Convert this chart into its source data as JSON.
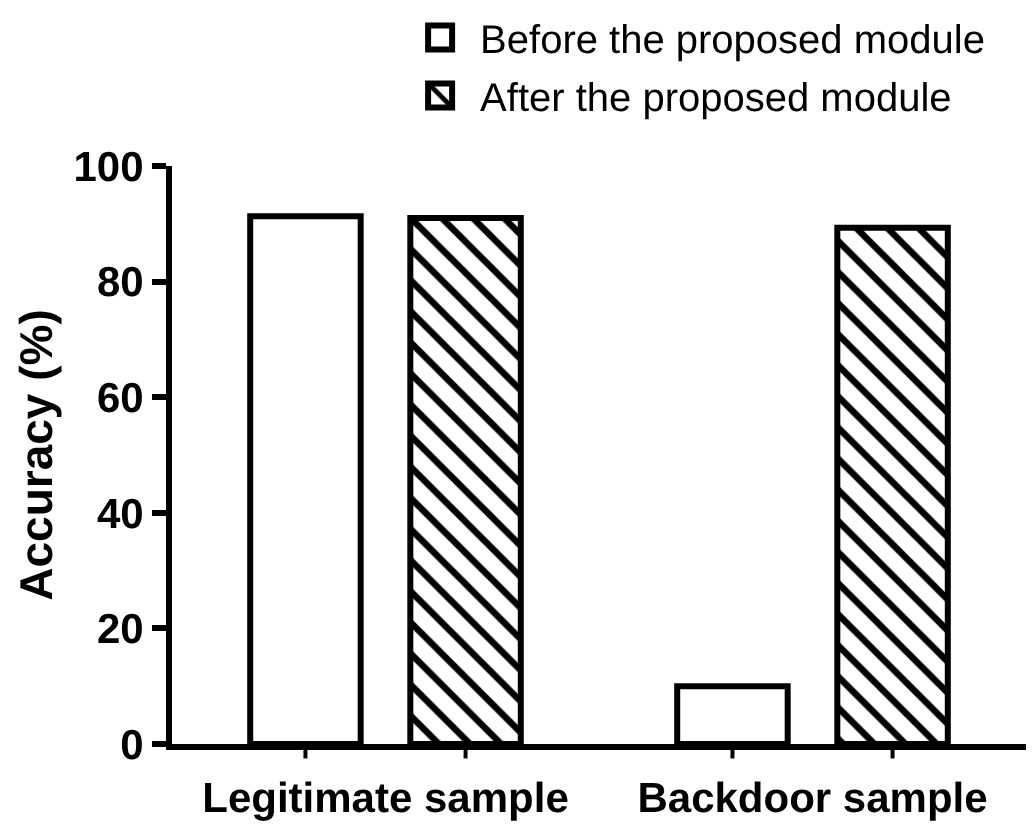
{
  "chart_data": {
    "type": "bar",
    "categories": [
      "Legitimate sample",
      "Backdoor sample"
    ],
    "ylabel": "Accuracy (%)",
    "series": [
      {
        "name": "Before the proposed module",
        "color": "#ffffff",
        "values": [
          91.3,
          10.0
        ]
      },
      {
        "name": "After the proposed module",
        "color": "#000000",
        "values": [
          91.0,
          89.3
        ]
      }
    ],
    "ylim": [
      0,
      100
    ],
    "yticks": [
      0,
      20,
      40,
      60,
      80,
      100
    ],
    "legend": "top right"
  }
}
